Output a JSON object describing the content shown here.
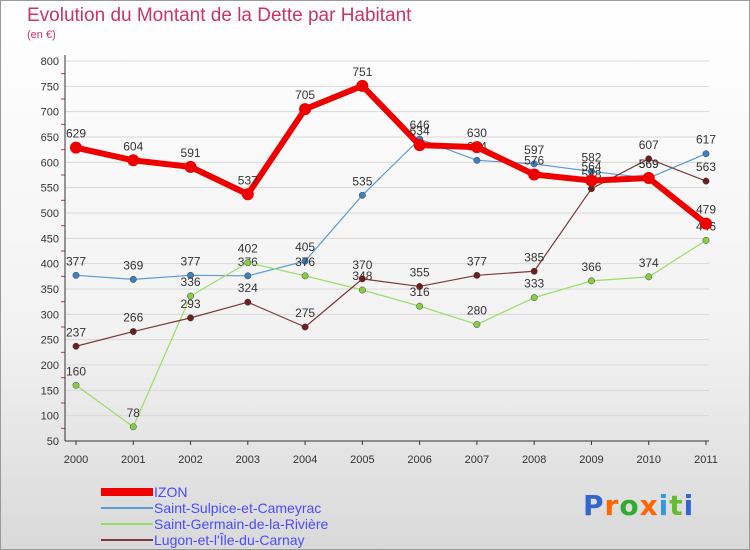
{
  "header": {
    "title": "Evolution du Montant de la Dette par Habitant",
    "subtitle": "(en €)"
  },
  "logo": {
    "text": "Proxiti",
    "letters": [
      "P",
      "r",
      "o",
      "x",
      "i",
      "t",
      "i"
    ]
  },
  "colors": {
    "title": "#cc3366",
    "legend_text": "#4b4bff",
    "axis_text": "#333333",
    "grid": "#d9d9d9"
  },
  "chart_data": {
    "type": "line",
    "title": "Evolution du Montant de la Dette par Habitant",
    "ylabel": "(en €)",
    "xlabel": "",
    "x": [
      "2000",
      "2001",
      "2002",
      "2003",
      "2004",
      "2005",
      "2006",
      "2007",
      "2008",
      "2009",
      "2010",
      "2011"
    ],
    "yticks": [
      50,
      100,
      150,
      200,
      250,
      300,
      350,
      400,
      450,
      500,
      550,
      600,
      650,
      700,
      750,
      800
    ],
    "ylim": [
      50,
      800
    ],
    "grid": "horizontal",
    "legend_position": "bottom-left",
    "series": [
      {
        "name": "Saint-Sulpice-et-Cameyrac",
        "color": "#5b9bd5",
        "marker": "#3d7fc0",
        "width": 1.2,
        "values": [
          377,
          369,
          377,
          376,
          405,
          535,
          646,
          604,
          597,
          582,
          569,
          617
        ]
      },
      {
        "name": "Saint-Germain-de-la-Rivière",
        "color": "#99dd66",
        "marker": "#88cc44",
        "width": 1.2,
        "values": [
          160,
          78,
          336,
          402,
          376,
          348,
          316,
          280,
          333,
          366,
          374,
          446
        ]
      },
      {
        "name": "Lugon-et-l'Île-du-Carnay",
        "color": "#7a3a3a",
        "marker": "#6b1f1f",
        "width": 1.2,
        "values": [
          237,
          266,
          293,
          324,
          275,
          370,
          355,
          377,
          385,
          548,
          607,
          563
        ]
      },
      {
        "name": "IZON",
        "color": "#ee0000",
        "marker": "#ee0000",
        "width": 6,
        "values": [
          629,
          604,
          591,
          537,
          705,
          751,
          634,
          630,
          576,
          564,
          569,
          479
        ]
      }
    ],
    "legend_order": [
      "IZON",
      "Saint-Sulpice-et-Cameyrac",
      "Saint-Germain-de-la-Rivière",
      "Lugon-et-l'Île-du-Carnay"
    ]
  }
}
